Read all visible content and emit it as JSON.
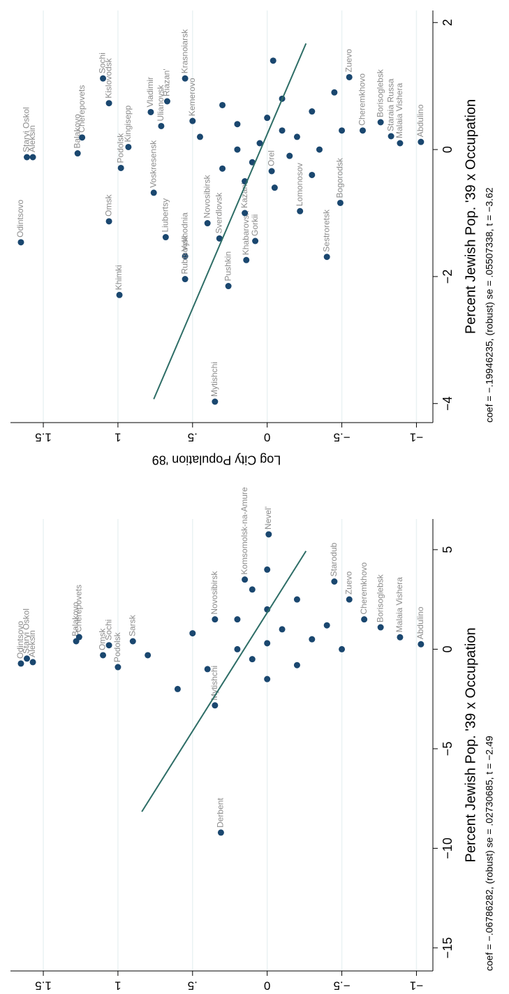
{
  "chart_data": [
    {
      "type": "scatter",
      "x_label": "Percent Jewish Pop. '39 x Occupation",
      "y_label": "Log City Population '89",
      "note": "coef = −.19946235, (robust) se = .05507338, t = −3.62",
      "xlim": [
        -4.3,
        2.19
      ],
      "ylim": [
        -1.04,
        1.72
      ],
      "xticks": [
        {
          "value": -4,
          "label": "−4"
        },
        {
          "value": -2,
          "label": "−2"
        },
        0,
        2
      ],
      "yticks": [
        {
          "value": -1,
          "label": "−1"
        },
        {
          "value": -0.5,
          "label": "−.5"
        },
        0,
        {
          "value": 0.5,
          "label": ".5"
        },
        1,
        {
          "value": 1.5,
          "label": "1.5"
        }
      ],
      "grid": true,
      "color": "#1a476f",
      "label_color": "#8c8c8c",
      "fit_color": "#2d6d66",
      "x": [
        -1.46,
        -0.12,
        -0.12,
        -0.06,
        0.19,
        1.12,
        0.73,
        -1.13,
        -2.29,
        -0.29,
        0.04,
        0.59,
        -0.68,
        0.37,
        0.76,
        -1.38,
        1.12,
        -1.68,
        -2.04,
        0.45,
        -1.16,
        -3.97,
        -2.15,
        -1.4,
        -1.74,
        -1.44,
        -1.0,
        -0.34,
        -0.97,
        -1.69,
        -0.84,
        1.14,
        0.3,
        0.43,
        0.21,
        0.1,
        0.12,
        0.0,
        0.1,
        -0.2,
        0.3,
        0.5,
        -0.3,
        0.2,
        0.6,
        -0.1,
        0.4,
        1.4,
        0.8,
        -0.5,
        0.0,
        0.7,
        -0.6,
        0.2,
        0.9,
        0.3,
        -0.4
      ],
      "y": [
        1.65,
        1.61,
        1.57,
        1.27,
        1.24,
        1.1,
        1.06,
        1.06,
        0.99,
        0.98,
        0.93,
        0.78,
        0.76,
        0.71,
        0.67,
        0.68,
        0.55,
        0.55,
        0.55,
        0.5,
        0.4,
        0.35,
        0.26,
        0.32,
        0.14,
        0.08,
        0.15,
        -0.03,
        -0.22,
        -0.4,
        -0.49,
        -0.55,
        -0.64,
        -0.76,
        -0.83,
        -0.89,
        -1.03,
        0.2,
        0.05,
        0.1,
        -0.1,
        0.0,
        0.3,
        -0.2,
        -0.3,
        -0.15,
        0.2,
        -0.04,
        -0.1,
        0.15,
        -0.35,
        0.3,
        -0.05,
        0.45,
        -0.45,
        -0.5,
        -0.3
      ],
      "labels": [
        "Odintsovo",
        "Staryi Oskol",
        "Aleksin",
        "Balakovo",
        "Cherepovets",
        "Sochi",
        "Kislovodsk",
        "Omsk",
        "Khimki",
        "Podolsk",
        "Kingisepp",
        "Vladimir",
        "Voskresensk",
        "Ulianovsk",
        "Riazan'",
        "Liubertsy",
        "Krasnoiarsk",
        "Vykhodnia",
        "Rubtsovsk",
        "Kemerovo",
        "Novosibirsk",
        "Mytishchi",
        "Pushkin",
        "Sverdlovsk",
        "Khabarovsk",
        "Gorkii",
        "Kazan'",
        "Orel",
        "Lomonosov",
        "Sestroretsk",
        "Bogorodsk",
        "Zuevo",
        "Cheremkhovo",
        "Borisoglebsk",
        "Staraia Russa",
        "Malaia Vishera",
        "Abdulino",
        null,
        null,
        null,
        null,
        null,
        null,
        null,
        null,
        null,
        null,
        null,
        null,
        null,
        null,
        null,
        null,
        null,
        null,
        null,
        null
      ],
      "fit_x": [
        -3.93,
        1.67
      ],
      "fit_y": [
        0.76,
        -0.26
      ]
    },
    {
      "type": "scatter",
      "x_label": "Percent Jewish Pop. '39 x Occupation",
      "y_label": "Log City Population '89",
      "note": "coef = −.06786282, (robust) se = .02730685, t = −2.49",
      "xlim": [
        -16.16,
        6.54
      ],
      "ylim": [
        -1.04,
        1.72
      ],
      "xticks": [
        {
          "value": -15,
          "label": "−15"
        },
        {
          "value": -10,
          "label": "−10"
        },
        {
          "value": -5,
          "label": "−5"
        },
        0,
        5
      ],
      "yticks": [
        {
          "value": -1,
          "label": "−1"
        },
        {
          "value": -0.5,
          "label": "−.5"
        },
        0,
        {
          "value": 0.5,
          "label": ".5"
        },
        1,
        {
          "value": 1.5,
          "label": "1.5"
        }
      ],
      "grid": true,
      "color": "#1a476f",
      "label_color": "#8c8c8c",
      "fit_color": "#2d6d66",
      "x": [
        -0.72,
        -0.47,
        -0.65,
        0.4,
        0.61,
        0.2,
        -0.3,
        -0.9,
        0.4,
        -9.21,
        0.25,
        5.77,
        3.5,
        3.4,
        2.5,
        1.5,
        1.1,
        0.6,
        -2.82,
        1.5,
        0.0,
        0.3,
        -0.5,
        1.0,
        2.0,
        -1.0,
        0.5,
        3.0,
        -1.5,
        1.5,
        4.0,
        -0.8,
        2.5,
        0.0,
        -2.0,
        0.8,
        -0.3,
        1.2
      ],
      "y": [
        1.65,
        1.61,
        1.57,
        1.28,
        1.26,
        1.06,
        1.1,
        1.0,
        0.9,
        0.31,
        -1.03,
        -0.01,
        0.15,
        -0.45,
        -0.55,
        -0.65,
        -0.76,
        -0.89,
        0.35,
        0.35,
        0.2,
        0.0,
        0.1,
        -0.1,
        0.0,
        0.4,
        -0.3,
        0.1,
        0.0,
        0.2,
        0.0,
        -0.2,
        -0.2,
        -0.5,
        0.6,
        0.5,
        0.8,
        -0.4
      ],
      "labels": [
        "Odintsovo",
        "Staryi Oskol",
        "Aleksin",
        "Balakovo",
        "Cherepovets",
        "Sochi",
        "Omsk",
        "Podolsk",
        "Sarsk",
        "Derbent",
        "Abdulino",
        "Nevel'",
        "Komsomolsk-na-Amure",
        "Starodub",
        "Zuevo",
        "Cheremkhovo",
        "Borisoglebsk",
        "Malaia Vishera",
        "Mytishchi",
        "Novosibirsk",
        null,
        null,
        null,
        null,
        null,
        null,
        null,
        null,
        null,
        null,
        null,
        null,
        null,
        null,
        null,
        null,
        null,
        null
      ],
      "fit_x": [
        -8.16,
        4.93
      ],
      "fit_y": [
        0.84,
        -0.26
      ]
    }
  ]
}
